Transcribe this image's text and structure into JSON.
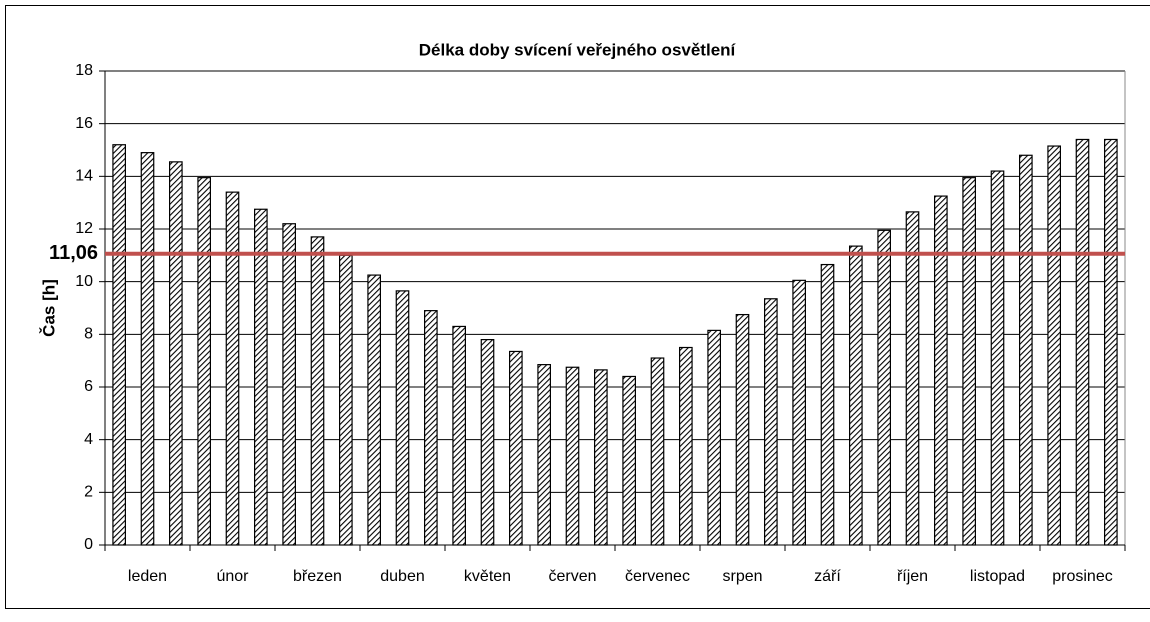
{
  "chart_data": {
    "type": "bar",
    "title": "Délka doby svícení veřejného osvětlení",
    "y_label": "Čas [h]",
    "categories": [
      null,
      "leden",
      null,
      null,
      "únor",
      null,
      null,
      "březen",
      null,
      null,
      "duben",
      null,
      null,
      "květen",
      null,
      null,
      "červen",
      null,
      null,
      "červenec",
      null,
      null,
      "srpen",
      null,
      null,
      "září",
      null,
      null,
      "říjen",
      null,
      null,
      "listopad",
      null,
      null,
      "prosinec",
      null
    ],
    "values": [
      15.2,
      14.9,
      14.55,
      13.95,
      13.4,
      12.75,
      12.2,
      11.7,
      11.0,
      10.25,
      9.65,
      8.9,
      8.3,
      7.8,
      7.35,
      6.85,
      6.75,
      6.65,
      6.4,
      7.1,
      7.5,
      8.15,
      8.75,
      9.35,
      10.05,
      10.65,
      11.35,
      11.95,
      12.65,
      13.25,
      13.95,
      14.2,
      14.8,
      15.15,
      15.4,
      15.4
    ],
    "ylim": [
      0,
      18
    ],
    "yticks": [
      0,
      2,
      4,
      6,
      8,
      10,
      12,
      14,
      16,
      18
    ],
    "grid": true,
    "reference_line": {
      "value": 11.06,
      "label": "11,06",
      "color": "#c0504d"
    }
  }
}
